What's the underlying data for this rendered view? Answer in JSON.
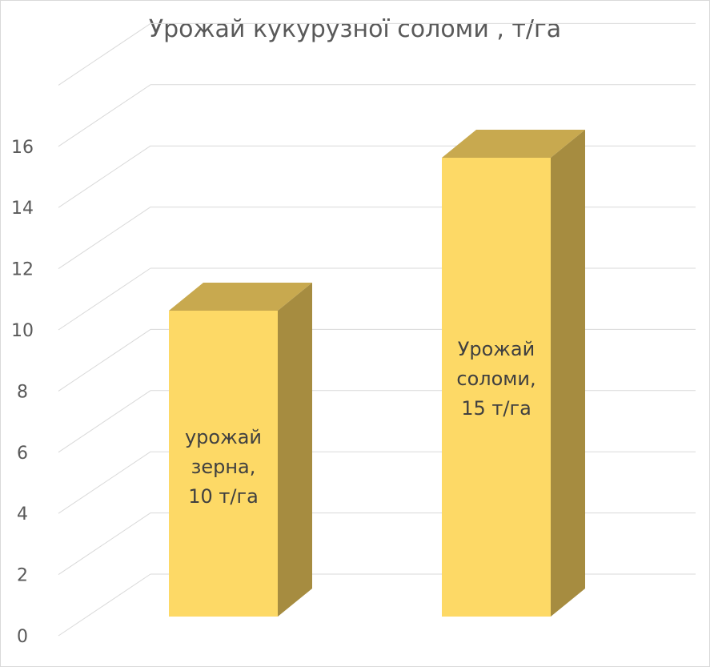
{
  "chart_data": {
    "type": "bar",
    "title": "Урожай кукурузної соломи , т/га",
    "categories": [
      "",
      ""
    ],
    "values": [
      10,
      15
    ],
    "data_labels": [
      [
        "урожай",
        "зерна,",
        "10 т/га"
      ],
      [
        "Урожай",
        "соломи,",
        "15 т/га"
      ]
    ],
    "y_ticks": [
      0,
      2,
      4,
      6,
      8,
      10,
      12,
      14,
      16
    ],
    "ylim": [
      0,
      18
    ],
    "grid": true,
    "legend": "none",
    "style": "3d-column"
  },
  "colors": {
    "bar_front": "#fdd966",
    "bar_top": "#c8a94f",
    "bar_side": "#a68c40",
    "gridline": "#d9d9d9",
    "text": "#595959"
  }
}
